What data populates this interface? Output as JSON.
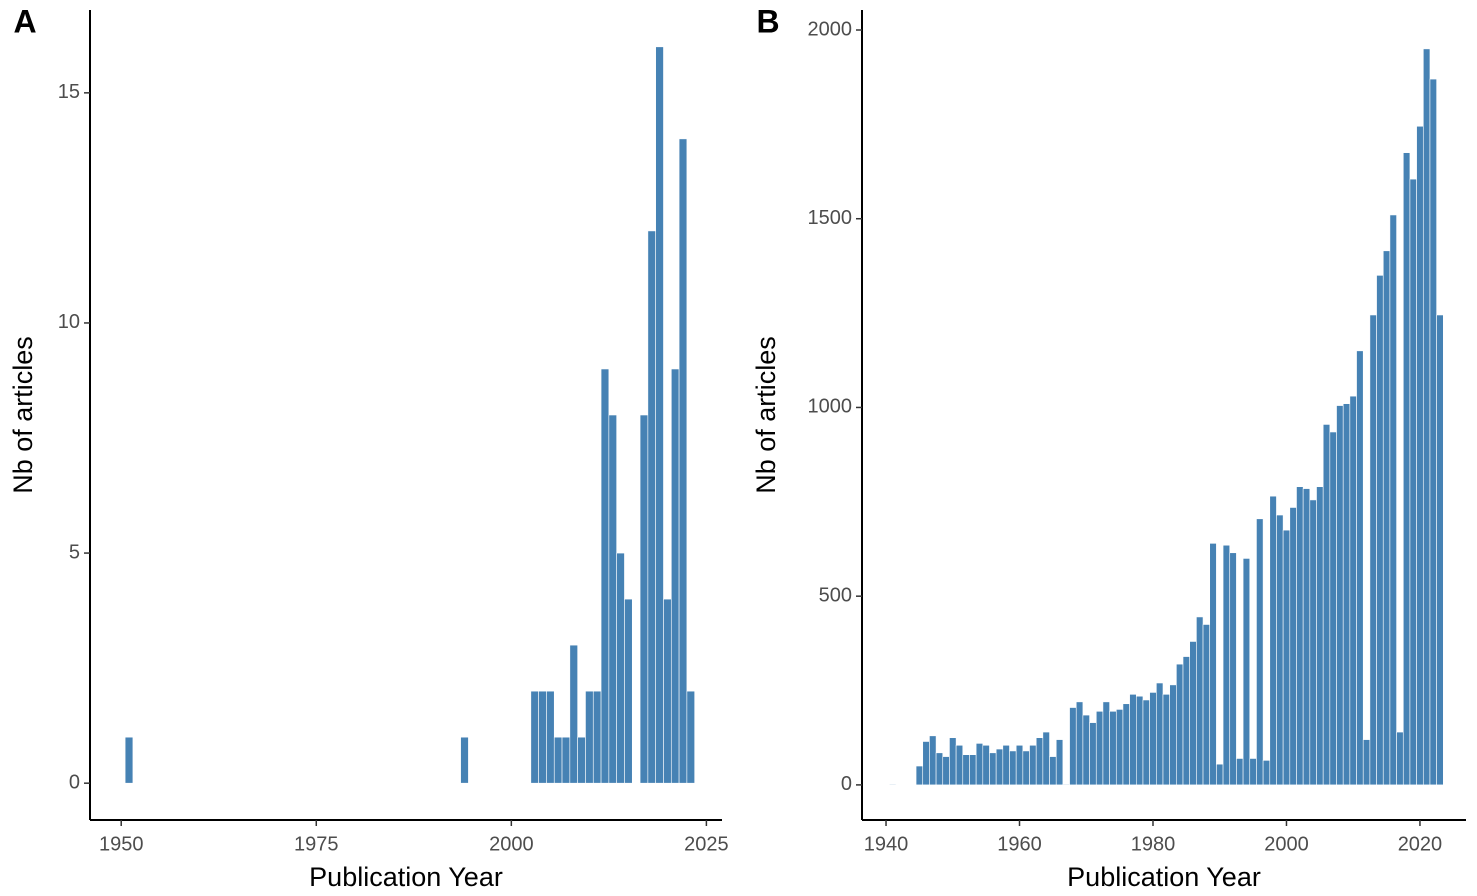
{
  "chart_data": [
    {
      "type": "bar",
      "panel_label": "A",
      "xlabel": "Publication Year",
      "ylabel": "Nb of articles",
      "color": "#4682b4",
      "x": [
        1951,
        1994,
        2003,
        2004,
        2005,
        2006,
        2007,
        2008,
        2009,
        2010,
        2011,
        2012,
        2013,
        2014,
        2015,
        2016,
        2017,
        2018,
        2019,
        2020,
        2021,
        2022,
        2023
      ],
      "values": [
        1,
        1,
        2,
        2,
        2,
        1,
        1,
        3,
        1,
        2,
        2,
        9,
        8,
        5,
        4,
        0,
        8,
        12,
        16,
        4,
        9,
        14,
        2
      ],
      "xlim": [
        1946,
        2027
      ],
      "xticks": [
        1950,
        1975,
        2000,
        2025
      ],
      "ylim": [
        -0.8,
        16.8
      ],
      "yticks": [
        0,
        5,
        10,
        15
      ]
    },
    {
      "type": "bar",
      "panel_label": "B",
      "xlabel": "Publication Year",
      "ylabel": "Nb of articles",
      "color": "#4682b4",
      "x": [
        1941,
        1945,
        1946,
        1947,
        1948,
        1949,
        1950,
        1951,
        1952,
        1953,
        1954,
        1955,
        1956,
        1957,
        1958,
        1959,
        1960,
        1961,
        1962,
        1963,
        1964,
        1965,
        1966,
        1967,
        1968,
        1969,
        1970,
        1971,
        1972,
        1973,
        1974,
        1975,
        1976,
        1977,
        1978,
        1979,
        1980,
        1981,
        1982,
        1983,
        1984,
        1985,
        1986,
        1987,
        1988,
        1989,
        1990,
        1991,
        1992,
        1993,
        1994,
        1995,
        1996,
        1997,
        1998,
        1999,
        2000,
        2001,
        2002,
        2003,
        2004,
        2005,
        2006,
        2007,
        2008,
        2009,
        2010,
        2011,
        2012,
        2013,
        2014,
        2015,
        2016,
        2017,
        2018,
        2019,
        2020,
        2021,
        2022,
        2023
      ],
      "values": [
        2,
        50,
        115,
        130,
        85,
        75,
        125,
        105,
        80,
        80,
        110,
        105,
        85,
        95,
        105,
        90,
        105,
        90,
        105,
        125,
        140,
        75,
        120,
        2,
        205,
        220,
        185,
        165,
        195,
        220,
        195,
        200,
        215,
        240,
        235,
        225,
        245,
        270,
        240,
        265,
        320,
        340,
        380,
        445,
        425,
        640,
        55,
        635,
        615,
        70,
        600,
        70,
        705,
        65,
        765,
        715,
        675,
        735,
        790,
        785,
        755,
        790,
        955,
        935,
        1005,
        1010,
        1030,
        1150,
        120,
        1245,
        1350,
        1415,
        1510,
        140,
        1675,
        1605,
        1745,
        1950,
        1870,
        1245
      ],
      "xlim": [
        1936.4,
        2026.9
      ],
      "xticks": [
        1940,
        1960,
        1980,
        2000,
        2020
      ],
      "ylim": [
        -93,
        2053
      ],
      "yticks": [
        0,
        500,
        1000,
        1500,
        2000
      ]
    }
  ]
}
